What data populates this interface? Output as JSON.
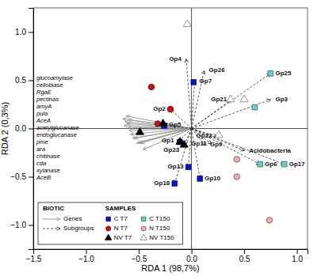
{
  "chart_data": {
    "type": "biplot",
    "xlabel": "RDA 1 (98,7%)",
    "ylabel": "RDA 2 (0,3%)",
    "xlim": [
      -1.5,
      1.1
    ],
    "ylim": [
      -1.25,
      1.25
    ],
    "xticks": [
      -1.5,
      -1.0,
      -0.5,
      0.0,
      0.5,
      1.0
    ],
    "yticks": [
      -1.0,
      -0.5,
      0.0,
      0.5,
      1.0
    ],
    "legend": "lower left",
    "vector_legend_title": "BIOTIC",
    "series_legend_title": "SAMPLES",
    "vectors": [
      {
        "name": "Genes",
        "color": "#999999",
        "line_style": "solid",
        "labels": [
          "glucoamylase",
          "cellobiase",
          "RgaE",
          "pectinas",
          "amyA",
          "pula",
          "AceA",
          "acetylglucanase",
          "endoglucanase",
          "pme",
          "ara",
          "chitinase",
          "cda",
          "xylanase",
          "AceB"
        ],
        "x": [
          -0.62,
          -0.65,
          -0.6,
          -0.63,
          -0.61,
          -0.64,
          -0.6,
          -0.59,
          -0.58,
          -0.56,
          -0.54,
          -0.52,
          -0.5,
          -0.48,
          -0.46
        ],
        "y": [
          0.13,
          0.1,
          0.09,
          0.07,
          0.05,
          0.03,
          0.01,
          -0.02,
          -0.06,
          -0.1,
          -0.1,
          -0.15,
          -0.15,
          -0.15,
          -0.22
        ]
      },
      {
        "name": "Subgroups",
        "color": "#333333",
        "line_style": "dashed",
        "labels": [
          "Gp4",
          "Gp26",
          "Gp7",
          "Gp21",
          "Gp2",
          "Gp5",
          "Gp22",
          "Gp9",
          "Gp11",
          "Gp1",
          "Gp23",
          "Gp13",
          "Gp18",
          "Gp10",
          "Acidobacteria",
          "Gp25",
          "Gp3",
          "Gp6",
          "Gp17"
        ],
        "x": [
          -0.05,
          0.12,
          0.03,
          0.38,
          -0.2,
          -0.26,
          0.24,
          0.13,
          0.19,
          -0.12,
          -0.07,
          -0.03,
          -0.16,
          0.08,
          0.5,
          0.75,
          0.75,
          0.65,
          0.88
        ],
        "y": [
          0.72,
          0.6,
          0.49,
          0.3,
          0.2,
          0.04,
          -0.08,
          -0.17,
          -0.16,
          -0.13,
          -0.17,
          -0.4,
          -0.57,
          -0.52,
          -0.23,
          0.57,
          0.3,
          -0.37,
          -0.37
        ]
      }
    ],
    "series": [
      {
        "name": "C T7",
        "color": "#1010cc",
        "marker": "square",
        "x": [
          0.02,
          -0.26,
          -0.11,
          -0.03,
          -0.16,
          0.08
        ],
        "y": [
          0.48,
          0.03,
          -0.14,
          -0.4,
          -0.57,
          -0.52
        ]
      },
      {
        "name": "N T7",
        "color": "#cc1010",
        "marker": "circle",
        "x": [
          -0.38,
          -0.2,
          -0.32
        ],
        "y": [
          0.43,
          0.2,
          0.05
        ]
      },
      {
        "name": "NV T7",
        "color": "#000000",
        "marker": "triangle",
        "x": [
          -0.49,
          -0.27,
          -0.11,
          -0.07
        ],
        "y": [
          -0.04,
          0.05,
          -0.14,
          -0.17
        ]
      },
      {
        "name": "C T150",
        "color": "#70cccc",
        "marker": "square",
        "x": [
          0.75,
          0.6,
          0.65,
          0.88
        ],
        "y": [
          0.57,
          0.22,
          -0.37,
          -0.37
        ]
      },
      {
        "name": "N T150",
        "color": "#f0aaaa",
        "marker": "circle",
        "x": [
          0.43,
          0.43,
          0.74
        ],
        "y": [
          -0.32,
          -0.5,
          -0.95
        ]
      },
      {
        "name": "NV T150",
        "color": "#ffffff",
        "marker": "triangle",
        "x": [
          -0.04,
          0.5,
          0.37,
          0.26
        ],
        "y": [
          1.08,
          0.3,
          0.3,
          -0.07
        ]
      }
    ]
  }
}
